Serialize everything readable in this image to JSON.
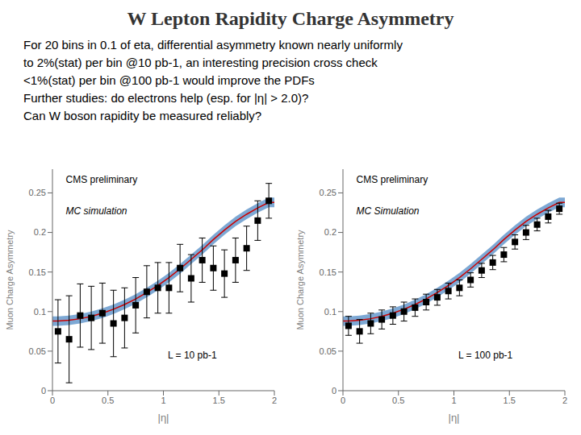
{
  "chart_data": [
    {
      "type": "scatter",
      "title": "W Lepton Rapidity Charge Asymmetry",
      "subtitle": [
        "For 20 bins in 0.1 of eta, differential asymmetry known nearly uniformly",
        "to 2%(stat) per bin @10 pb-1, an interesting precision cross check",
        "<1%(stat) per bin @100 pb-1 would improve the PDFs",
        "Further studies: do electrons help (esp. for |η| > 2.0)?",
        "Can W boson rapidity be measured reliably?"
      ],
      "xlabel": "|η|",
      "ylabel": "Muon Charge Asymmetry",
      "xlim": [
        0,
        2.0
      ],
      "ylim": [
        0,
        0.28
      ],
      "xticks": [
        0,
        0.5,
        1,
        1.5,
        2
      ],
      "yticks": [
        0,
        0.05,
        0.1,
        0.15,
        0.2,
        0.25
      ],
      "annotations": [
        "CMS preliminary",
        "MC simulation",
        "L = 10 pb-1"
      ],
      "series": [
        {
          "type": "band",
          "color": "#6699CC",
          "x": [
            0,
            0.05,
            0.15,
            0.25,
            0.35,
            0.45,
            0.55,
            0.65,
            0.75,
            0.85,
            0.95,
            1.05,
            1.15,
            1.25,
            1.35,
            1.45,
            1.55,
            1.65,
            1.75,
            1.85,
            1.95,
            2.0
          ],
          "lower": [
            0.082,
            0.082,
            0.083,
            0.085,
            0.088,
            0.092,
            0.097,
            0.103,
            0.11,
            0.118,
            0.127,
            0.137,
            0.148,
            0.16,
            0.172,
            0.185,
            0.197,
            0.208,
            0.217,
            0.225,
            0.232,
            0.232
          ],
          "upper": [
            0.094,
            0.094,
            0.095,
            0.097,
            0.1,
            0.104,
            0.109,
            0.115,
            0.122,
            0.13,
            0.139,
            0.149,
            0.16,
            0.172,
            0.184,
            0.197,
            0.209,
            0.22,
            0.229,
            0.237,
            0.244,
            0.244
          ]
        },
        {
          "type": "line",
          "color": "#CC0000",
          "x": [
            0,
            0.05,
            0.15,
            0.25,
            0.35,
            0.45,
            0.55,
            0.65,
            0.75,
            0.85,
            0.95,
            1.05,
            1.15,
            1.25,
            1.35,
            1.45,
            1.55,
            1.65,
            1.75,
            1.85,
            1.95,
            2.0
          ],
          "values": [
            0.088,
            0.088,
            0.089,
            0.091,
            0.094,
            0.098,
            0.103,
            0.109,
            0.116,
            0.124,
            0.133,
            0.143,
            0.154,
            0.166,
            0.178,
            0.191,
            0.203,
            0.214,
            0.223,
            0.231,
            0.238,
            0.238
          ]
        },
        {
          "type": "scatter",
          "marker": "square",
          "color": "#000000",
          "x": [
            0.05,
            0.15,
            0.25,
            0.35,
            0.45,
            0.55,
            0.65,
            0.75,
            0.85,
            0.95,
            1.05,
            1.15,
            1.25,
            1.35,
            1.45,
            1.55,
            1.65,
            1.75,
            1.85,
            1.95
          ],
          "values": [
            0.075,
            0.065,
            0.095,
            0.092,
            0.098,
            0.085,
            0.092,
            0.108,
            0.125,
            0.13,
            0.13,
            0.155,
            0.142,
            0.165,
            0.155,
            0.148,
            0.165,
            0.18,
            0.215,
            0.24
          ],
          "errors": [
            0.04,
            0.055,
            0.04,
            0.04,
            0.038,
            0.042,
            0.038,
            0.035,
            0.033,
            0.032,
            0.032,
            0.03,
            0.03,
            0.028,
            0.028,
            0.03,
            0.028,
            0.028,
            0.025,
            0.022
          ]
        }
      ]
    },
    {
      "type": "scatter",
      "xlabel": "|η|",
      "ylabel": "Muon Charge Asymmetry",
      "xlim": [
        0,
        2.0
      ],
      "ylim": [
        0,
        0.28
      ],
      "xticks": [
        0,
        0.5,
        1,
        1.5,
        2
      ],
      "yticks": [
        0,
        0.05,
        0.1,
        0.15,
        0.2,
        0.25
      ],
      "annotations": [
        "CMS preliminary",
        "MC Simulation",
        "L = 100 pb-1"
      ],
      "series": [
        {
          "type": "band",
          "color": "#6699CC",
          "x": [
            0,
            0.05,
            0.15,
            0.25,
            0.35,
            0.45,
            0.55,
            0.65,
            0.75,
            0.85,
            0.95,
            1.05,
            1.15,
            1.25,
            1.35,
            1.45,
            1.55,
            1.65,
            1.75,
            1.85,
            1.95,
            2.0
          ],
          "lower": [
            0.082,
            0.082,
            0.083,
            0.085,
            0.088,
            0.092,
            0.097,
            0.103,
            0.11,
            0.118,
            0.127,
            0.137,
            0.148,
            0.16,
            0.172,
            0.185,
            0.197,
            0.208,
            0.217,
            0.225,
            0.232,
            0.232
          ],
          "upper": [
            0.094,
            0.094,
            0.095,
            0.097,
            0.1,
            0.104,
            0.109,
            0.115,
            0.122,
            0.13,
            0.139,
            0.149,
            0.16,
            0.172,
            0.184,
            0.197,
            0.209,
            0.22,
            0.229,
            0.237,
            0.244,
            0.244
          ]
        },
        {
          "type": "line",
          "color": "#CC0000",
          "x": [
            0,
            0.05,
            0.15,
            0.25,
            0.35,
            0.45,
            0.55,
            0.65,
            0.75,
            0.85,
            0.95,
            1.05,
            1.15,
            1.25,
            1.35,
            1.45,
            1.55,
            1.65,
            1.75,
            1.85,
            1.95,
            2.0
          ],
          "values": [
            0.088,
            0.088,
            0.089,
            0.091,
            0.094,
            0.098,
            0.103,
            0.109,
            0.116,
            0.124,
            0.133,
            0.143,
            0.154,
            0.166,
            0.178,
            0.191,
            0.203,
            0.214,
            0.223,
            0.231,
            0.238,
            0.238
          ]
        },
        {
          "type": "scatter",
          "marker": "square",
          "color": "#000000",
          "x": [
            0.05,
            0.15,
            0.25,
            0.35,
            0.45,
            0.55,
            0.65,
            0.75,
            0.85,
            0.95,
            1.05,
            1.15,
            1.25,
            1.35,
            1.45,
            1.55,
            1.65,
            1.75,
            1.85,
            1.95
          ],
          "values": [
            0.082,
            0.075,
            0.085,
            0.09,
            0.095,
            0.1,
            0.105,
            0.112,
            0.118,
            0.126,
            0.13,
            0.14,
            0.152,
            0.162,
            0.172,
            0.188,
            0.2,
            0.21,
            0.22,
            0.23
          ],
          "errors": [
            0.012,
            0.015,
            0.013,
            0.012,
            0.011,
            0.012,
            0.011,
            0.01,
            0.01,
            0.01,
            0.01,
            0.009,
            0.009,
            0.009,
            0.009,
            0.009,
            0.009,
            0.008,
            0.008,
            0.007
          ]
        }
      ]
    }
  ]
}
